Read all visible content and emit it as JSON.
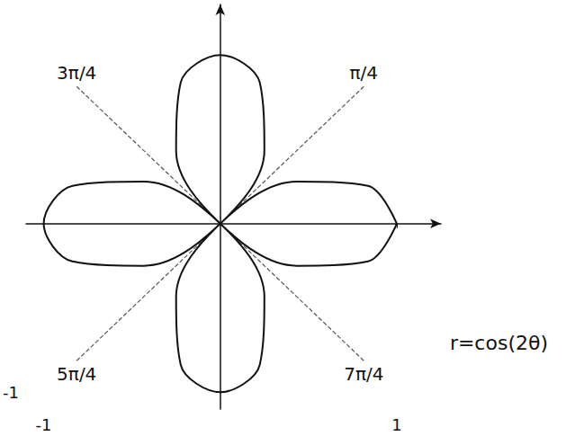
{
  "chart_data": {
    "type": "line",
    "x": [
      1,
      0.837,
      0.433,
      0,
      -0.25,
      -0.224,
      0,
      0.224,
      0.25,
      0,
      -0.433,
      -0.837,
      -1,
      -0.837,
      -0.433,
      0,
      0.25,
      0.224,
      0,
      -0.224,
      -0.25,
      0,
      0.433,
      0.837,
      1
    ],
    "values": [
      0,
      0.224,
      0.25,
      0,
      -0.433,
      -0.837,
      -1,
      -0.837,
      -0.433,
      0,
      0.25,
      0.224,
      0,
      -0.224,
      -0.25,
      0,
      0.433,
      0.837,
      1,
      0.837,
      0.433,
      0,
      -0.25,
      -0.224,
      0
    ],
    "color": "#111111",
    "line_style": "solid",
    "xlim": [
      -1.1,
      1.25
    ],
    "ylim": [
      -1.1,
      1.3
    ],
    "xticks": [
      -1,
      1
    ],
    "yticks": [
      -1
    ],
    "grid": false,
    "rays": [
      {
        "label": "π/4",
        "angle_deg": 45
      },
      {
        "label": "3π/4",
        "angle_deg": 135
      },
      {
        "label": "5π/4",
        "angle_deg": 225
      },
      {
        "label": "7π/4",
        "angle_deg": 315
      }
    ],
    "annotations": [
      "r=cos(2θ)"
    ]
  }
}
